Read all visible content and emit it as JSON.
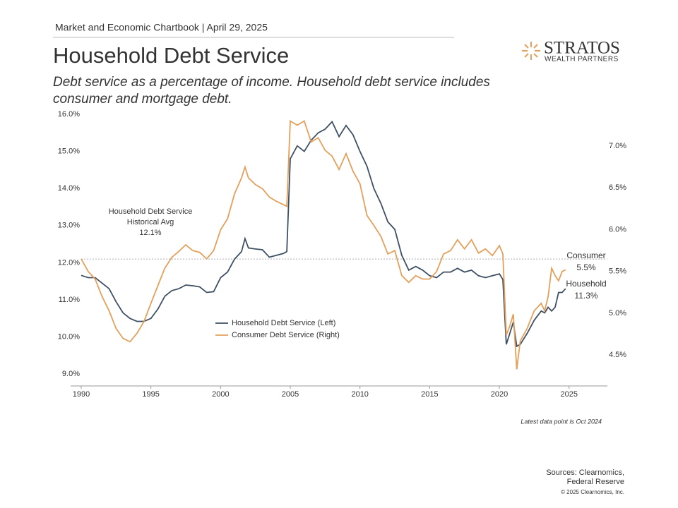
{
  "header": "Market and Economic Chartbook | April 29, 2025",
  "logo": {
    "name": "STRATOS",
    "tagline": "WEALTH PARTNERS"
  },
  "chart_data": {
    "type": "line",
    "title": "Household Debt Service",
    "subtitle": [
      "Debt service as a percentage of income. Household debt service includes",
      "consumer and mortgage debt."
    ],
    "x": [
      1990,
      1990.5,
      1991,
      1991.5,
      1992,
      1992.5,
      1993,
      1993.5,
      1994,
      1994.5,
      1995,
      1995.5,
      1996,
      1996.5,
      1997,
      1997.5,
      1998,
      1998.5,
      1999,
      1999.5,
      2000,
      2000.5,
      2001,
      2001.5,
      2001.75,
      2002,
      2002.5,
      2003,
      2003.5,
      2004,
      2004.5,
      2004.75,
      2005,
      2005.5,
      2006,
      2006.5,
      2007,
      2007.5,
      2008,
      2008.5,
      2009,
      2009.5,
      2010,
      2010.5,
      2011,
      2011.5,
      2012,
      2012.5,
      2013,
      2013.5,
      2014,
      2014.5,
      2015,
      2015.5,
      2016,
      2016.5,
      2017,
      2017.5,
      2018,
      2018.5,
      2019,
      2019.5,
      2020,
      2020.25,
      2020.5,
      2020.75,
      2021,
      2021.25,
      2021.5,
      2022,
      2022.5,
      2023,
      2023.25,
      2023.5,
      2023.75,
      2024,
      2024.25,
      2024.5,
      2024.75
    ],
    "series": [
      {
        "name": "Household Debt Service (Left)",
        "color": "#3e5063",
        "axis": "y",
        "end_label": {
          "name": "Household",
          "value_label": "11.3%"
        },
        "values": [
          11.66,
          11.6,
          11.6,
          11.45,
          11.3,
          10.95,
          10.65,
          10.5,
          10.42,
          10.42,
          10.5,
          10.75,
          11.1,
          11.25,
          11.3,
          11.4,
          11.38,
          11.35,
          11.2,
          11.22,
          11.6,
          11.75,
          12.1,
          12.3,
          12.65,
          12.4,
          12.37,
          12.35,
          12.15,
          12.2,
          12.25,
          12.3,
          14.8,
          15.15,
          15.0,
          15.3,
          15.5,
          15.6,
          15.8,
          15.4,
          15.7,
          15.45,
          15.0,
          14.6,
          14.0,
          13.6,
          13.1,
          12.9,
          12.2,
          11.8,
          11.9,
          11.8,
          11.65,
          11.6,
          11.75,
          11.75,
          11.85,
          11.75,
          11.8,
          11.65,
          11.6,
          11.65,
          11.7,
          11.55,
          9.8,
          10.1,
          10.4,
          9.75,
          9.8,
          10.1,
          10.45,
          10.7,
          10.65,
          10.8,
          10.7,
          10.8,
          11.2,
          11.2,
          11.3
        ]
      },
      {
        "name": "Consumer Debt Service (Right)",
        "color": "#e3a05c",
        "axis": "y2",
        "end_label": {
          "name": "Consumer",
          "value_label": "5.5%"
        },
        "values": [
          5.65,
          5.5,
          5.41,
          5.2,
          5.03,
          4.82,
          4.7,
          4.66,
          4.76,
          4.9,
          5.12,
          5.33,
          5.54,
          5.67,
          5.74,
          5.82,
          5.75,
          5.73,
          5.65,
          5.75,
          6.0,
          6.13,
          6.43,
          6.62,
          6.75,
          6.62,
          6.54,
          6.49,
          6.39,
          6.34,
          6.3,
          6.28,
          7.3,
          7.25,
          7.3,
          7.05,
          7.1,
          6.95,
          6.88,
          6.72,
          6.91,
          6.7,
          6.55,
          6.17,
          6.05,
          5.92,
          5.71,
          5.75,
          5.45,
          5.37,
          5.45,
          5.41,
          5.41,
          5.5,
          5.71,
          5.75,
          5.88,
          5.77,
          5.88,
          5.72,
          5.77,
          5.69,
          5.81,
          5.71,
          4.74,
          4.85,
          4.99,
          4.33,
          4.67,
          4.82,
          5.03,
          5.12,
          5.03,
          5.2,
          5.54,
          5.45,
          5.39,
          5.5,
          5.52
        ]
      }
    ],
    "xlim": [
      1990,
      2027.75
    ],
    "xticks": [
      1990,
      1995,
      2000,
      2005,
      2010,
      2015,
      2020,
      2025
    ],
    "ylim": [
      8.7,
      16.0
    ],
    "yticks": [
      {
        "value": 9,
        "label": "9.0%"
      },
      {
        "value": 10,
        "label": "10.0%"
      },
      {
        "value": 11,
        "label": "11.0%"
      },
      {
        "value": 12,
        "label": "12.0%"
      },
      {
        "value": 13,
        "label": "13.0%"
      },
      {
        "value": 14,
        "label": "14.0%"
      },
      {
        "value": 15,
        "label": "15.0%"
      },
      {
        "value": 16,
        "label": "16.0%"
      }
    ],
    "y2lim": [
      4.14,
      7.38
    ],
    "y2ticks": [
      {
        "value": 4.5,
        "label": "4.5%"
      },
      {
        "value": 5,
        "label": "5.0%"
      },
      {
        "value": 5.5,
        "label": "5.5%"
      },
      {
        "value": 6,
        "label": "6.0%"
      },
      {
        "value": 6.5,
        "label": "6.5%"
      },
      {
        "value": 7,
        "label": "7.0%"
      }
    ],
    "average": {
      "text": [
        "Household Debt Service",
        "Historical Avg"
      ],
      "value": 12.1,
      "label": "12.1%"
    },
    "note": "Latest data point is Oct 2024"
  },
  "footer": {
    "sources": [
      "Sources: Clearnomics,",
      "Federal Reserve"
    ],
    "copyright": "© 2025 Clearnomics, Inc."
  }
}
